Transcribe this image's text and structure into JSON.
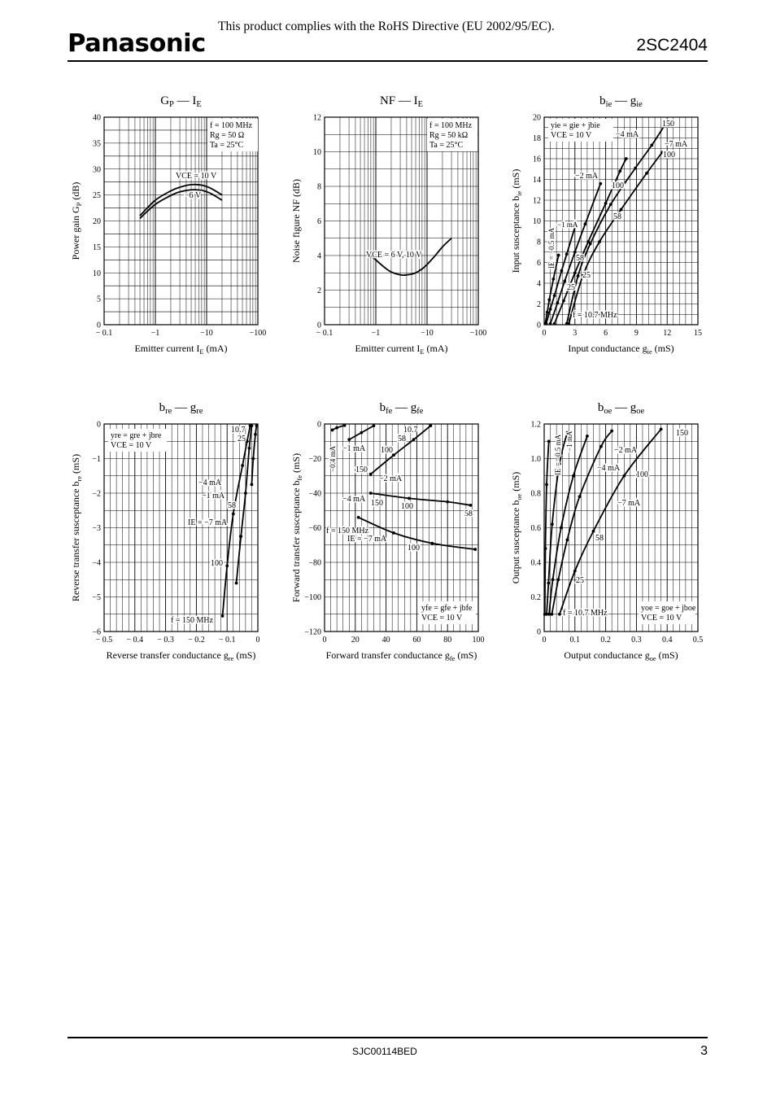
{
  "header": {
    "rohs_notice": "This product complies with the RoHS Directive (EU 2002/95/EC).",
    "logo": "Panasonic",
    "part_number": "2SC2404"
  },
  "footer": {
    "doc_id": "SJC00114BED",
    "page": "3"
  },
  "colors": {
    "ink": "#000000",
    "background": "#ffffff"
  },
  "chart_data": [
    {
      "id": "gp-ie",
      "type": "line",
      "title": "GP — IE",
      "title_main": "G",
      "title_sub": "P",
      "title_dash": "—",
      "title_main2": "I",
      "title_sub2": "E",
      "xlabel": "Emitter current  I",
      "xlabel_sub": "E",
      "xlabel_unit": "  (mA)",
      "ylabel": "Power gain  G",
      "ylabel_sub": "P",
      "ylabel_unit": "  (dB)",
      "xscale": "log-negative",
      "xlim": [
        -0.1,
        -100
      ],
      "ylim": [
        0,
        40
      ],
      "grid": true,
      "xticks": [
        "− 0.1",
        "−1",
        "−10",
        "−100"
      ],
      "yticks": [
        "0",
        "5",
        "10",
        "15",
        "20",
        "25",
        "30",
        "35",
        "40"
      ],
      "conditions": [
        "f = 100 MHz",
        "Rg = 50 Ω",
        "Ta = 25°C"
      ],
      "series": [
        {
          "name": "VCE = 10 V",
          "x": [
            -0.5,
            -1,
            -2,
            -3,
            -5,
            -8,
            -12,
            -20
          ],
          "y": [
            21.0,
            24.0,
            25.8,
            26.5,
            27.0,
            26.9,
            26.3,
            25.0
          ]
        },
        {
          "name": "−6 V",
          "x": [
            -0.5,
            -1,
            -2,
            -3,
            -5,
            -8,
            -12,
            -20
          ],
          "y": [
            20.5,
            23.2,
            24.9,
            25.6,
            26.0,
            25.9,
            25.3,
            24.0
          ]
        }
      ]
    },
    {
      "id": "nf-ie",
      "type": "line",
      "title": "NF — IE",
      "title_main": "NF",
      "title_sub": "",
      "title_dash": "—",
      "title_main2": "I",
      "title_sub2": "E",
      "xlabel": "Emitter current  I",
      "xlabel_sub": "E",
      "xlabel_unit": "  (mA)",
      "ylabel": "Noise figure  NF",
      "ylabel_sub": "",
      "ylabel_unit": "  (dB)",
      "xscale": "log-negative",
      "xlim": [
        -0.1,
        -100
      ],
      "ylim": [
        0,
        12
      ],
      "grid": true,
      "xticks": [
        "− 0.1",
        "−1",
        "−10",
        "−100"
      ],
      "yticks": [
        "0",
        "2",
        "4",
        "6",
        "8",
        "10",
        "12"
      ],
      "conditions": [
        "f = 100 MHz",
        "Rg = 50 kΩ",
        "Ta = 25°C"
      ],
      "series": [
        {
          "name": "VCE = 6 V, 10 V",
          "x": [
            -0.7,
            -1,
            -1.5,
            -2,
            -3,
            -4,
            -6,
            -9,
            -14,
            -20,
            -30
          ],
          "y": [
            4.2,
            3.75,
            3.3,
            3.05,
            2.88,
            2.88,
            3.0,
            3.35,
            3.95,
            4.5,
            5.0
          ]
        }
      ]
    },
    {
      "id": "bie-gie",
      "type": "line",
      "title": "bie — gie",
      "title_main": "b",
      "title_sub": "ie",
      "title_dash": "—",
      "title_main2": "g",
      "title_sub2": "ie",
      "xlabel": "Input conductance  g",
      "xlabel_sub": "ie",
      "xlabel_unit": "  (mS)",
      "ylabel": "Input susceptance  b",
      "ylabel_sub": "ie",
      "ylabel_unit": "  (mS)",
      "xlim": [
        0,
        15
      ],
      "ylim": [
        0,
        20
      ],
      "grid": true,
      "xticks": [
        "0",
        "3",
        "6",
        "9",
        "12",
        "15"
      ],
      "yticks": [
        "0",
        "2",
        "4",
        "6",
        "8",
        "10",
        "12",
        "14",
        "16",
        "18",
        "20"
      ],
      "conditions": [
        "yie = gie + jbie",
        "VCE = 10 V"
      ],
      "series": [
        {
          "name": "IE = −0.5 mA",
          "x": [
            0.1,
            0.3,
            0.5,
            0.9,
            1.4
          ],
          "y": [
            0.1,
            1.2,
            2.4,
            4.4,
            6.7
          ]
        },
        {
          "name": "−1 mA",
          "x": [
            0.2,
            0.6,
            1.0,
            1.7,
            2.2,
            3.0
          ],
          "y": [
            0.1,
            1.5,
            2.8,
            5.2,
            6.8,
            9.4
          ]
        },
        {
          "name": "−2 mA",
          "x": [
            0.6,
            1.3,
            2.0,
            3.0,
            4.0,
            5.5
          ],
          "y": [
            0.1,
            2.1,
            4.2,
            7.0,
            9.7,
            13.6
          ]
        },
        {
          "name": "−4 mA",
          "x": [
            1.0,
            1.9,
            3.0,
            4.3,
            6.0,
            7.4,
            8.0
          ],
          "y": [
            0.1,
            2.3,
            5.0,
            8.0,
            11.7,
            14.8,
            16.0
          ]
        },
        {
          "name": "−7 mA",
          "x": [
            2.2,
            3.3,
            4.5,
            6.5,
            8.9,
            10.5,
            11.8
          ],
          "y": [
            0.1,
            4.7,
            7.8,
            11.6,
            15.1,
            17.3,
            19.3
          ]
        },
        {
          "name": "",
          "x": [
            2.4,
            3.8,
            5.4,
            7.5,
            10.0,
            11.5
          ],
          "y": [
            0.1,
            4.8,
            8.0,
            11.1,
            14.6,
            16.6
          ]
        }
      ],
      "annotations": [
        "150",
        "−4 mA",
        "−7 mA",
        "100",
        "−2 mA",
        "100",
        "58",
        "−1 mA",
        "IE = −0.5 mA",
        "58",
        "25",
        "25",
        "f = 10.7 MHz"
      ]
    },
    {
      "id": "bre-gre",
      "type": "line",
      "title": "bre — gre",
      "title_main": "b",
      "title_sub": "re",
      "title_dash": "—",
      "title_main2": "g",
      "title_sub2": "re",
      "xlabel": "Reverse transfer conductance  g",
      "xlabel_sub": "re",
      "xlabel_unit": "  (mS)",
      "ylabel": "Reverse transfer susceptance  b",
      "ylabel_sub": "re",
      "ylabel_unit": "  (mS)",
      "xlim": [
        -0.5,
        0
      ],
      "ylim": [
        -6,
        0
      ],
      "grid": true,
      "xticks": [
        "− 0.5",
        "− 0.4",
        "− 0.3",
        "− 0.2",
        "− 0.1",
        "0"
      ],
      "yticks": [
        "−6",
        "−5",
        "−4",
        "−3",
        "−2",
        "−1",
        "0"
      ],
      "conditions": [
        "yre = gre + jbre",
        "VCE = 10 V"
      ],
      "series": [
        {
          "name": "IE = −7 mA",
          "x": [
            -0.115,
            -0.1,
            -0.08,
            -0.05,
            -0.035,
            -0.025
          ],
          "y": [
            -5.55,
            -4.1,
            -2.6,
            -1.2,
            -0.5,
            -0.05
          ]
        },
        {
          "name": "−4 mA",
          "x": [
            -0.07,
            -0.055,
            -0.04,
            -0.028,
            -0.02
          ],
          "y": [
            -4.6,
            -3.25,
            -2.0,
            -0.7,
            -0.05
          ]
        },
        {
          "name": "−1 mA",
          "x": [
            -0.02,
            -0.015,
            -0.008,
            -0.004
          ],
          "y": [
            -1.75,
            -1.0,
            -0.3,
            -0.05
          ]
        }
      ],
      "annotations": [
        "10.7",
        "25",
        "−4 mA",
        "−1 mA",
        "58",
        "IE = −7 mA",
        "100",
        "f = 150 MHz"
      ]
    },
    {
      "id": "bfe-gfe",
      "type": "line",
      "title": "bfe — gfe",
      "title_main": "b",
      "title_sub": "fe",
      "title_dash": "—",
      "title_main2": "g",
      "title_sub2": "fe",
      "xlabel": "Forward transfer conductance  g",
      "xlabel_sub": "fe",
      "xlabel_unit": "  (mS)",
      "ylabel": "Forward transfer susceptance  b",
      "ylabel_sub": "fe",
      "ylabel_unit": "  (mS)",
      "xlim": [
        0,
        100
      ],
      "ylim": [
        -120,
        0
      ],
      "grid": true,
      "xticks": [
        "0",
        "20",
        "40",
        "60",
        "80",
        "100"
      ],
      "yticks": [
        "−120",
        "−100",
        "−80",
        "−60",
        "−40",
        "−20",
        "0"
      ],
      "conditions": [
        "yfe = gfe + jbfe",
        "VCE = 10 V"
      ],
      "series": [
        {
          "name": "IE = −0.4 mA",
          "x": [
            5,
            8,
            13
          ],
          "y": [
            -3.5,
            -2.2,
            -0.8
          ]
        },
        {
          "name": "−1 mA",
          "x": [
            16,
            24,
            32
          ],
          "y": [
            -9,
            -5,
            -1
          ]
        },
        {
          "name": "−2 mA",
          "x": [
            30,
            45,
            58,
            69
          ],
          "y": [
            -29,
            -18,
            -9,
            -1
          ]
        },
        {
          "name": "−4 mA",
          "x": [
            30,
            55,
            80,
            95
          ],
          "y": [
            -40,
            -43,
            -45,
            -47
          ]
        },
        {
          "name": "IE = −7 mA",
          "x": [
            22,
            45,
            70,
            98
          ],
          "y": [
            -54,
            -63,
            -69,
            -72.5
          ]
        }
      ],
      "annotations": [
        "−0.4 mA",
        "10.7",
        "58",
        "−1 mA",
        "100",
        "150",
        "−2 mA",
        "−4 mA",
        "150",
        "100",
        "58",
        "f = 150 MHz",
        "IE = −7 mA",
        "100"
      ]
    },
    {
      "id": "boe-goe",
      "type": "line",
      "title": "boe — goe",
      "title_main": "b",
      "title_sub": "oe",
      "title_dash": "—",
      "title_main2": "g",
      "title_sub2": "oe",
      "xlabel": "Output conductance  g",
      "xlabel_sub": "oe",
      "xlabel_unit": "  (mS)",
      "ylabel": "Output susceptance  b",
      "ylabel_sub": "oe",
      "ylabel_unit": "  (mS)",
      "xlim": [
        0,
        0.5
      ],
      "ylim": [
        0,
        1.2
      ],
      "grid": true,
      "xticks": [
        "0",
        "0.1",
        "0.2",
        "0.3",
        "0.4",
        "0.5"
      ],
      "yticks": [
        "0",
        "0.2",
        "0.4",
        "0.6",
        "0.8",
        "1.0",
        "1.2"
      ],
      "conditions": [
        "yoe = goe + jboe",
        "VCE = 10 V"
      ],
      "series": [
        {
          "name": "IE = −0.5 mA",
          "x": [
            0.002,
            0.004,
            0.008,
            0.015
          ],
          "y": [
            0.1,
            0.48,
            0.85,
            1.1
          ]
        },
        {
          "name": "−1 mA",
          "x": [
            0.008,
            0.014,
            0.026,
            0.05,
            0.075
          ],
          "y": [
            0.1,
            0.28,
            0.62,
            0.97,
            1.15
          ]
        },
        {
          "name": "−2 mA",
          "x": [
            0.016,
            0.028,
            0.055,
            0.095,
            0.14
          ],
          "y": [
            0.1,
            0.3,
            0.6,
            0.9,
            1.13
          ]
        },
        {
          "name": "−4 mA",
          "x": [
            0.025,
            0.046,
            0.075,
            0.115,
            0.185,
            0.22
          ],
          "y": [
            0.1,
            0.3,
            0.53,
            0.78,
            1.07,
            1.16
          ]
        },
        {
          "name": "−7 mA",
          "x": [
            0.05,
            0.1,
            0.16,
            0.26,
            0.38
          ],
          "y": [
            0.1,
            0.35,
            0.58,
            0.9,
            1.17
          ]
        }
      ],
      "annotations": [
        "150",
        "−2 mA",
        "−4 mA",
        "100",
        "−7 mA",
        "IE = −0.5 mA",
        "−1 mA",
        "58",
        "25",
        "f = 10.7 MHz"
      ]
    }
  ]
}
